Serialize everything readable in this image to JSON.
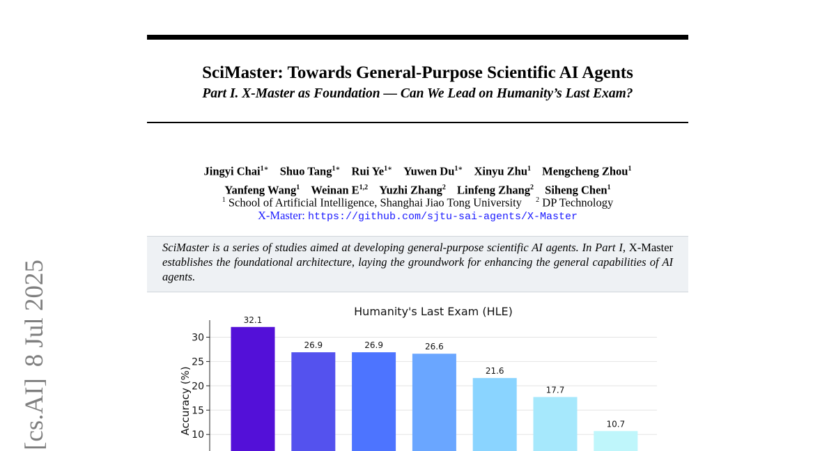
{
  "paper": {
    "title": "SciMaster: Towards General-Purpose Scientific AI Agents",
    "subtitle": "Part I. X-Master as Foundation — Can We Lead on Humanity’s Last Exam?",
    "authors_line1": [
      {
        "name": "Jingyi Chai",
        "sup": "1∗"
      },
      {
        "name": "Shuo Tang",
        "sup": "1∗"
      },
      {
        "name": "Rui Ye",
        "sup": "1∗"
      },
      {
        "name": "Yuwen Du",
        "sup": "1∗"
      },
      {
        "name": "Xinyu Zhu",
        "sup": "1"
      },
      {
        "name": "Mengcheng Zhou",
        "sup": "1"
      }
    ],
    "authors_line2": [
      {
        "name": "Yanfeng Wang",
        "sup": "1"
      },
      {
        "name": "Weinan E",
        "sup": "1,2"
      },
      {
        "name": "Yuzhi Zhang",
        "sup": "2"
      },
      {
        "name": "Linfeng Zhang",
        "sup": "2"
      },
      {
        "name": "Siheng Chen",
        "sup": "1"
      }
    ],
    "affiliations": [
      {
        "sup": "1",
        "text": "School of Artificial Intelligence, Shanghai Jiao Tong University"
      },
      {
        "sup": "2",
        "text": "DP Technology"
      }
    ],
    "link_label": "X-Master:",
    "link_url": "https://github.com/sjtu-sai-agents/X-Master",
    "abstract": {
      "part1": "SciMaster is a series of studies aimed at developing general-purpose scientific AI agents. In Part I,",
      "upright": "X-Master",
      "part2": "establishes the foundational architecture, laying the groundwork for enhancing the general capabilities of AI agents."
    }
  },
  "sidebar_stamp": {
    "category": "[cs.AI]",
    "date": "8 Jul 2025"
  },
  "chart_data": {
    "type": "bar",
    "title": "Humanity's Last Exam (HLE)",
    "ylabel": "Accuracy (%)",
    "xlabel": "",
    "values": [
      32.1,
      26.9,
      26.9,
      26.6,
      21.6,
      17.7,
      10.7
    ],
    "value_labels": [
      "32.1",
      "26.9",
      "26.9",
      "26.6",
      "21.6",
      "17.7",
      "10.7"
    ],
    "colors": [
      "#5310d8",
      "#5452ee",
      "#4d74ff",
      "#6aa6ff",
      "#8ad4ff",
      "#a6e8fc",
      "#bff6fb"
    ],
    "yticks": [
      "10",
      "15",
      "20",
      "25",
      "30"
    ],
    "ylim": [
      6.6,
      33.5
    ],
    "grid": true
  }
}
